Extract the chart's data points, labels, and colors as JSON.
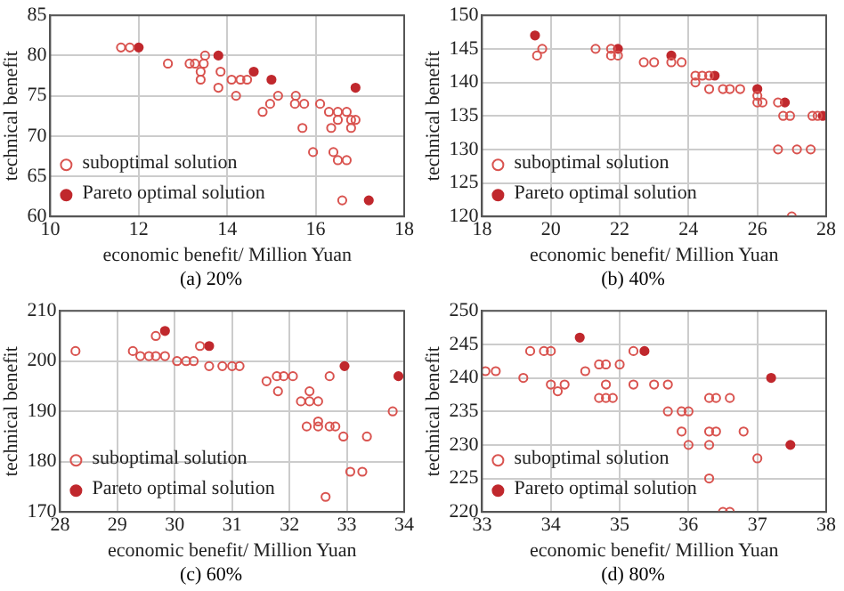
{
  "chart_data": [
    {
      "type": "scatter",
      "title": "(a) 20%",
      "xlabel": "economic benefit/ Million Yuan",
      "ylabel": "technical benefit",
      "xlim": [
        10,
        18
      ],
      "xticks": [
        10,
        12,
        14,
        16,
        18
      ],
      "ylim": [
        60,
        85
      ],
      "yticks": [
        60,
        65,
        70,
        75,
        80,
        85
      ],
      "grid": true,
      "legend": "bottom left",
      "marker": "circle",
      "series": [
        {
          "name": "suboptimal solution",
          "color": "#d9534f",
          "x": [
            11.6,
            11.8,
            12.66,
            13.15,
            13.27,
            13.5,
            13.47,
            13.4,
            13.4,
            13.85,
            13.8,
            14.1,
            14.3,
            14.45,
            14.2,
            14.8,
            14.97,
            15.15,
            15.55,
            15.53,
            15.74,
            15.7,
            15.94,
            16.1,
            16.3,
            16.5,
            16.7,
            16.5,
            16.35,
            16.8,
            16.9,
            16.8,
            16.4,
            16.5,
            16.7,
            16.6
          ],
          "values": [
            81,
            81,
            79,
            79,
            79,
            80,
            79,
            78,
            77,
            78,
            76,
            77,
            77,
            77,
            75,
            73,
            74,
            75,
            75,
            74,
            74,
            71,
            68,
            74,
            73,
            73,
            73,
            72,
            71,
            72,
            72,
            71,
            68,
            67,
            67,
            62
          ]
        },
        {
          "name": "Pareto optimal solution",
          "color": "#c0282d",
          "x": [
            12,
            13.8,
            14.6,
            15,
            16.9,
            17.2
          ],
          "values": [
            81,
            80,
            78,
            77,
            76,
            62
          ]
        }
      ]
    },
    {
      "type": "scatter",
      "title": "(b) 40%",
      "xlabel": "economic benefit/ Million Yuan",
      "ylabel": "technical benefit",
      "xlim": [
        18,
        28
      ],
      "xticks": [
        18,
        20,
        22,
        24,
        26,
        28
      ],
      "ylim": [
        120,
        150
      ],
      "yticks": [
        120,
        125,
        130,
        135,
        140,
        145,
        150
      ],
      "grid": true,
      "legend": "bottom left",
      "marker": "circle",
      "series": [
        {
          "name": "suboptimal solution",
          "color": "#d9534f",
          "x": [
            19.6,
            19.75,
            21.3,
            21.75,
            21.75,
            21.95,
            22.7,
            23.0,
            23.5,
            23.8,
            24.2,
            24.2,
            24.4,
            24.6,
            24.6,
            25.0,
            25.2,
            25.5,
            26.0,
            26.0,
            26.15,
            26.6,
            26.75,
            26.95,
            27.6,
            27.75,
            26.6,
            27.15,
            27.55,
            27.0
          ],
          "values": [
            144,
            145,
            145,
            145,
            144,
            144,
            143,
            143,
            143,
            143,
            141,
            140,
            141,
            141,
            139,
            139,
            139,
            139,
            138,
            137,
            137,
            137,
            135,
            135,
            135,
            135,
            130,
            130,
            130,
            120
          ]
        },
        {
          "name": "Pareto optimal solution",
          "color": "#c0282d",
          "x": [
            19.54,
            21.95,
            23.5,
            24.76,
            26.0,
            26.8,
            27.9
          ],
          "values": [
            147,
            145,
            144,
            141,
            139,
            137,
            135
          ]
        }
      ]
    },
    {
      "type": "scatter",
      "title": "(c) 60%",
      "xlabel": "economic benefit/ Million Yuan",
      "ylabel": "technical benefit",
      "xlim": [
        28,
        34
      ],
      "xticks": [
        28,
        29,
        30,
        31,
        32,
        33,
        34
      ],
      "ylim": [
        170,
        210
      ],
      "yticks": [
        170,
        180,
        190,
        200,
        210
      ],
      "grid": true,
      "legend": "bottom left",
      "marker": "circle",
      "series": [
        {
          "name": "suboptimal solution",
          "color": "#d9534f",
          "x": [
            28.27,
            29.27,
            29.4,
            29.55,
            29.67,
            29.83,
            29.67,
            30.04,
            30.2,
            30.33,
            30.44,
            30.6,
            30.83,
            31.0,
            31.13,
            31.6,
            31.78,
            31.9,
            32.06,
            31.8,
            32.2,
            32.35,
            32.5,
            32.35,
            32.3,
            32.5,
            32.5,
            32.7,
            32.8,
            32.7,
            32.94,
            33.35,
            33.8,
            33.06,
            33.27,
            32.63
          ],
          "values": [
            202,
            202,
            201,
            201,
            201,
            201,
            205,
            200,
            200,
            200,
            203,
            199,
            199,
            199,
            199,
            196,
            197,
            197,
            197,
            194,
            192,
            192,
            192,
            194,
            187,
            188,
            187,
            187,
            187,
            197,
            185,
            185,
            190,
            178,
            178,
            173
          ]
        },
        {
          "name": "Pareto optimal solution",
          "color": "#c0282d",
          "x": [
            29.83,
            30.6,
            32.96,
            33.9
          ],
          "values": [
            206,
            203,
            199,
            197
          ]
        }
      ]
    },
    {
      "type": "scatter",
      "title": "(d) 80%",
      "xlabel": "economic benefit/ Million Yuan",
      "ylabel": "technical benefit",
      "xlim": [
        33,
        38
      ],
      "xticks": [
        33,
        34,
        35,
        36,
        37,
        38
      ],
      "ylim": [
        220,
        250
      ],
      "yticks": [
        220,
        225,
        230,
        235,
        240,
        245,
        250
      ],
      "grid": true,
      "legend": "bottom left",
      "marker": "circle",
      "series": [
        {
          "name": "suboptimal solution",
          "color": "#d9534f",
          "x": [
            33.05,
            33.2,
            33.6,
            33.7,
            33.9,
            34.0,
            34.0,
            34.1,
            34.2,
            34.5,
            34.7,
            34.8,
            35.0,
            34.7,
            34.8,
            34.9,
            34.8,
            35.2,
            35.2,
            35.5,
            35.7,
            35.7,
            35.9,
            36.0,
            35.9,
            36.0,
            36.3,
            36.4,
            36.6,
            36.3,
            36.4,
            36.3,
            36.8,
            37.0,
            36.3,
            36.5,
            36.6
          ],
          "values": [
            241,
            241,
            240,
            244,
            244,
            244,
            239,
            238,
            239,
            241,
            242,
            242,
            242,
            237,
            237,
            237,
            239,
            244,
            239,
            239,
            239,
            235,
            235,
            235,
            232,
            230,
            237,
            237,
            237,
            232,
            232,
            230,
            232,
            228,
            225,
            220,
            220
          ]
        },
        {
          "name": "Pareto optimal solution",
          "color": "#c0282d",
          "x": [
            34.42,
            35.36,
            37.2,
            37.48
          ],
          "values": [
            246,
            244,
            240,
            230
          ]
        }
      ]
    }
  ]
}
